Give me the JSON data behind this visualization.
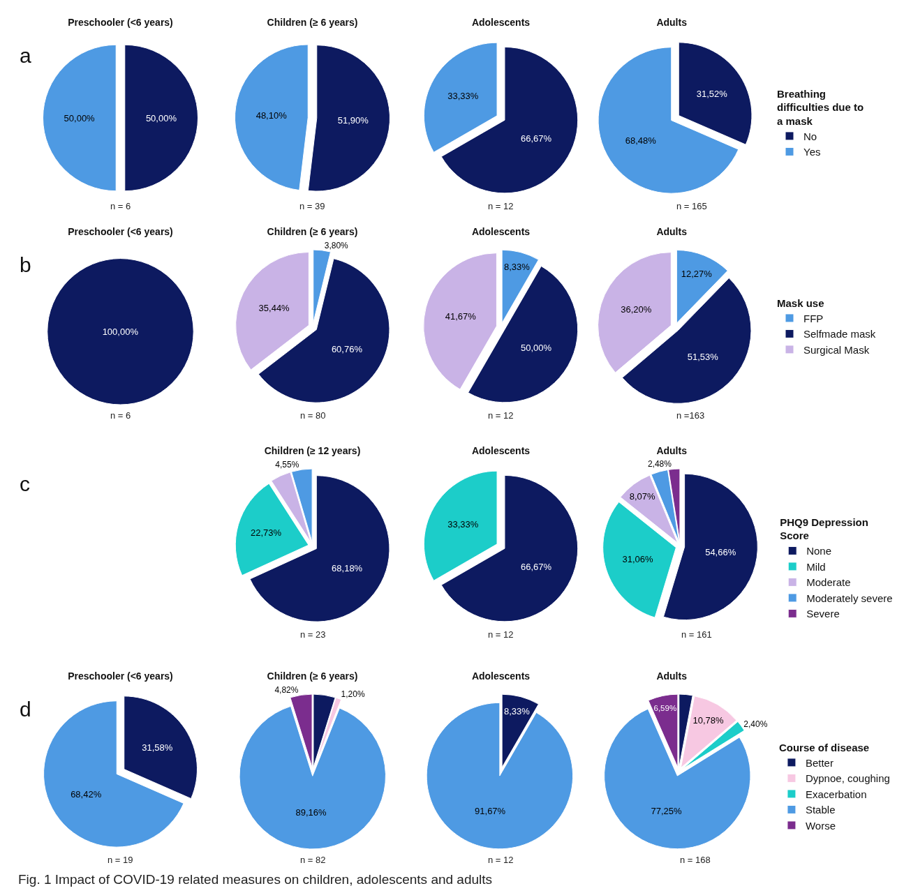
{
  "chart_data": [
    {
      "type": "pie",
      "title": "Preschooler (<6 years)",
      "categories": [
        null,
        null
      ],
      "values": [
        50.0,
        50.0
      ],
      "colors": [
        "#0d1a60",
        "#4e9ae3"
      ],
      "value_labels": [
        "50,00%",
        "50,00%"
      ],
      "annotations": [
        "n = 6",
        "a"
      ],
      "legend": false
    },
    {
      "type": "pie",
      "title": "Children (≥ 6 years)",
      "categories": [
        null,
        null
      ],
      "values": [
        51.9,
        48.1
      ],
      "colors": [
        "#0d1a60",
        "#4e9ae3"
      ],
      "value_labels": [
        "51,90%",
        "48,10%"
      ],
      "annotations": [
        "n = 39"
      ],
      "legend": false
    },
    {
      "type": "pie",
      "title": "Adolescents",
      "categories": [
        null,
        null
      ],
      "values": [
        66.67,
        33.33
      ],
      "colors": [
        "#0d1a60",
        "#4e9ae3"
      ],
      "value_labels": [
        "66,67%",
        "33,33%"
      ],
      "annotations": [
        "n = 12"
      ],
      "legend": false
    },
    {
      "type": "pie",
      "title": "Adults",
      "legend_title": "Breathing difficulties due to a mask",
      "categories": [
        "No",
        "Yes"
      ],
      "values": [
        31.52,
        68.48
      ],
      "colors": [
        "#0d1a60",
        "#4e9ae3"
      ],
      "value_labels": [
        "31,52%",
        "68,48%"
      ],
      "annotations": [
        "n = 165"
      ],
      "legend": "right"
    },
    {
      "type": "pie",
      "title": "Preschooler (<6 years)",
      "categories": [
        null
      ],
      "values": [
        100.0
      ],
      "colors": [
        "#0d1a60"
      ],
      "value_labels": [
        "100,00%"
      ],
      "annotations": [
        "n = 6",
        "b"
      ],
      "legend": false
    },
    {
      "type": "pie",
      "title": "Children (≥ 6 years)",
      "categories": [
        null,
        null,
        null
      ],
      "values": [
        3.8,
        60.76,
        35.44
      ],
      "colors": [
        "#4e9ae3",
        "#0d1a60",
        "#c9b3e6"
      ],
      "value_labels": [
        "3,80%",
        "60,76%",
        "35,44%"
      ],
      "annotations": [
        "n = 80"
      ],
      "legend": false
    },
    {
      "type": "pie",
      "title": "Adolescents",
      "categories": [
        null,
        null,
        null
      ],
      "values": [
        8.33,
        50.0,
        41.67
      ],
      "colors": [
        "#4e9ae3",
        "#0d1a60",
        "#c9b3e6"
      ],
      "value_labels": [
        "8,33%",
        "50,00%",
        "41,67%"
      ],
      "annotations": [
        "n = 12"
      ],
      "legend": false
    },
    {
      "type": "pie",
      "title": "Adults",
      "legend_title": "Mask use",
      "categories": [
        "FFP",
        "Selfmade mask",
        "Surgical Mask"
      ],
      "values": [
        12.27,
        51.53,
        36.2
      ],
      "colors": [
        "#4e9ae3",
        "#0d1a60",
        "#c9b3e6"
      ],
      "value_labels": [
        "12,27%",
        "51,53%",
        "36,20%"
      ],
      "annotations": [
        "n =163"
      ],
      "legend": "right"
    },
    {
      "type": "pie",
      "title": "Children (≥ 12 years)",
      "categories": [
        null,
        null,
        null,
        null
      ],
      "values": [
        68.18,
        22.73,
        4.55,
        4.55
      ],
      "colors": [
        "#0d1a60",
        "#1ccdc9",
        "#c9b3e6",
        "#4e9ae3"
      ],
      "value_labels": [
        "68,18%",
        "22,73%",
        null,
        "4,55%"
      ],
      "annotations": [
        "n = 23",
        "c"
      ],
      "legend": false
    },
    {
      "type": "pie",
      "title": "Adolescents",
      "categories": [
        null,
        null
      ],
      "values": [
        66.67,
        33.33
      ],
      "colors": [
        "#0d1a60",
        "#1ccdc9"
      ],
      "value_labels": [
        "66,67%",
        "33,33%"
      ],
      "annotations": [
        "n = 12"
      ],
      "legend": false
    },
    {
      "type": "pie",
      "title": "Adults",
      "legend_title": "PHQ9 Depression Score",
      "categories": [
        "None",
        "Mild",
        "Moderate",
        "Moderately severe",
        "Severe"
      ],
      "values": [
        54.66,
        31.06,
        8.07,
        3.73,
        2.48
      ],
      "colors": [
        "#0d1a60",
        "#1ccdc9",
        "#c9b3e6",
        "#4e9ae3",
        "#7b2d8e"
      ],
      "value_labels": [
        "54,66%",
        "31,06%",
        "8,07%",
        null,
        "2,48%"
      ],
      "annotations": [
        "n = 161"
      ],
      "legend": "right"
    },
    {
      "type": "pie",
      "title": "Preschooler (<6 years)",
      "categories": [
        null,
        null
      ],
      "values": [
        31.58,
        68.42
      ],
      "colors": [
        "#0d1a60",
        "#4e9ae3"
      ],
      "value_labels": [
        "31,58%",
        "68,42%"
      ],
      "annotations": [
        "n = 19",
        "d",
        "Fig. 1  Impact of COVID-19 related measures on children, adolescents and adults"
      ],
      "legend": false
    },
    {
      "type": "pie",
      "title": "Children (≥ 6 years)",
      "categories": [
        null,
        null,
        null,
        null
      ],
      "values": [
        4.82,
        1.2,
        89.16,
        4.82
      ],
      "colors": [
        "#0d1a60",
        "#f7c8e2",
        "#4e9ae3",
        "#7b2d8e"
      ],
      "value_labels": [
        null,
        "1,20%",
        "89,16%",
        "4,82%"
      ],
      "annotations": [
        "n = 82"
      ],
      "legend": false
    },
    {
      "type": "pie",
      "title": "Adolescents",
      "categories": [
        null,
        null
      ],
      "values": [
        8.33,
        91.67
      ],
      "colors": [
        "#0d1a60",
        "#4e9ae3"
      ],
      "value_labels": [
        "8,33%",
        "91,67%"
      ],
      "annotations": [
        "n = 12"
      ],
      "legend": false
    },
    {
      "type": "pie",
      "title": "Adults",
      "legend_title": "Course of disease",
      "categories": [
        "Better",
        "Dypnoe, coughing",
        "Exacerbation",
        "Stable",
        "Worse"
      ],
      "values": [
        2.98,
        10.78,
        2.4,
        77.25,
        6.59
      ],
      "colors": [
        "#0d1a60",
        "#f7c8e2",
        "#1ccdc9",
        "#4e9ae3",
        "#7b2d8e"
      ],
      "value_labels": [
        null,
        "10,78%",
        "2,40%",
        "77,25%",
        "6,59%"
      ],
      "annotations": [
        "n = 168"
      ],
      "legend": "right"
    }
  ]
}
